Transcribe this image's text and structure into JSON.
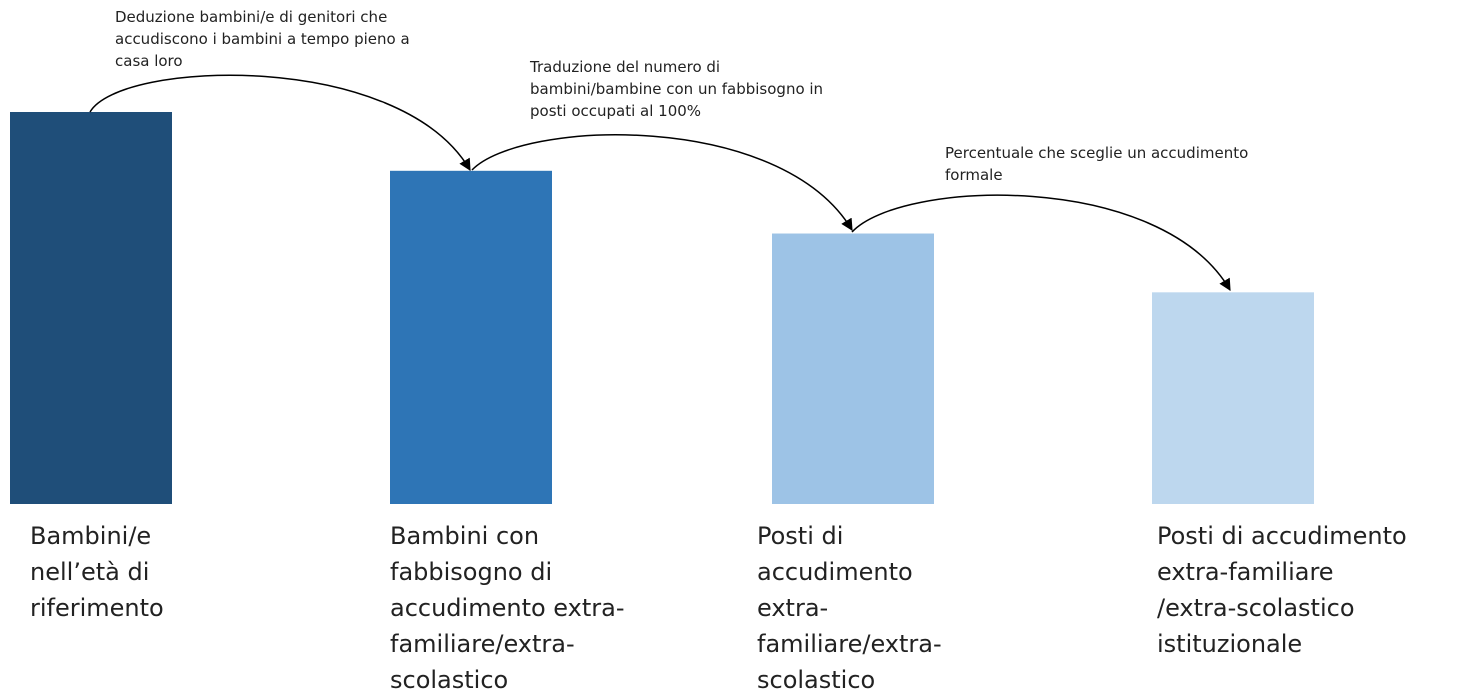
{
  "chart_data": {
    "type": "bar",
    "categories": [
      "Bambini/e\nnell’età di\nriferimento",
      "Bambini con\nfabbisogno di\naccudimento extra-\nfamiliare/extra-\nscolastico",
      "Posti di\naccudimento\nextra-\nfamiliare/extra-\nscolastico",
      "Posti di accudimento\nextra-familiare\n/extra-scolastico\nistituzionale"
    ],
    "values": [
      100,
      85,
      69,
      54
    ],
    "colors": [
      "#1f4e79",
      "#2e75b6",
      "#9dc3e6",
      "#bdd7ee"
    ],
    "ylim": [
      0,
      100
    ],
    "annotations": [
      "Deduzione bambini/e di genitori che\naccudiscono i bambini a tempo pieno a\ncasa loro",
      "Traduzione del numero di\nbambini/bambine con un fabbisogno in\nposti occupati al 100%",
      "Percentuale che sceglie un accudimento\nformale"
    ]
  }
}
